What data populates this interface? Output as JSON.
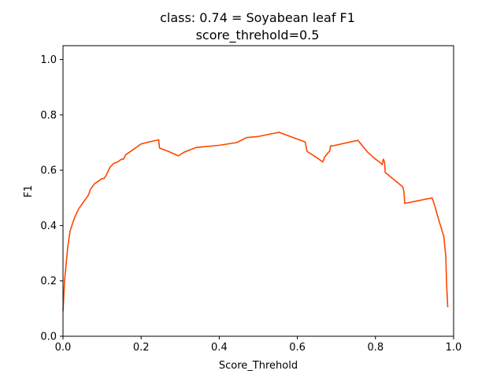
{
  "chart_data": {
    "type": "line",
    "title": "class: 0.74 = Soyabean leaf F1",
    "subtitle": "score_threhold=0.5",
    "xlabel": "Score_Threhold",
    "ylabel": "F1",
    "xlim": [
      0.0,
      1.0
    ],
    "ylim": [
      0.0,
      1.05
    ],
    "x_ticks": [
      "0.0",
      "0.2",
      "0.4",
      "0.6",
      "0.8",
      "1.0"
    ],
    "y_ticks": [
      "0.0",
      "0.2",
      "0.4",
      "0.6",
      "0.8",
      "1.0"
    ],
    "grid": false,
    "legend": "none",
    "series": [
      {
        "color": "#ff4500",
        "x": [
          0.0,
          0.004,
          0.008,
          0.012,
          0.018,
          0.025,
          0.03,
          0.04,
          0.05,
          0.06,
          0.065,
          0.07,
          0.08,
          0.09,
          0.1,
          0.105,
          0.11,
          0.12,
          0.13,
          0.14,
          0.15,
          0.155,
          0.16,
          0.18,
          0.2,
          0.22,
          0.245,
          0.247,
          0.27,
          0.295,
          0.31,
          0.34,
          0.4,
          0.445,
          0.47,
          0.5,
          0.553,
          0.62,
          0.625,
          0.65,
          0.665,
          0.67,
          0.68,
          0.683,
          0.685,
          0.69,
          0.755,
          0.78,
          0.8,
          0.81,
          0.817,
          0.82,
          0.823,
          0.825,
          0.87,
          0.873,
          0.875,
          0.945,
          0.95,
          0.96,
          0.975,
          0.98,
          0.982,
          0.985
        ],
        "y": [
          0.09,
          0.2,
          0.26,
          0.32,
          0.38,
          0.41,
          0.43,
          0.46,
          0.48,
          0.5,
          0.51,
          0.53,
          0.55,
          0.56,
          0.57,
          0.57,
          0.58,
          0.61,
          0.625,
          0.63,
          0.64,
          0.64,
          0.655,
          0.675,
          0.695,
          0.702,
          0.71,
          0.68,
          0.668,
          0.652,
          0.665,
          0.682,
          0.69,
          0.7,
          0.718,
          0.722,
          0.737,
          0.702,
          0.668,
          0.645,
          0.63,
          0.648,
          0.665,
          0.67,
          0.688,
          0.688,
          0.708,
          0.665,
          0.64,
          0.63,
          0.62,
          0.64,
          0.63,
          0.592,
          0.54,
          0.52,
          0.48,
          0.5,
          0.48,
          0.43,
          0.36,
          0.29,
          0.19,
          0.105
        ]
      }
    ]
  }
}
